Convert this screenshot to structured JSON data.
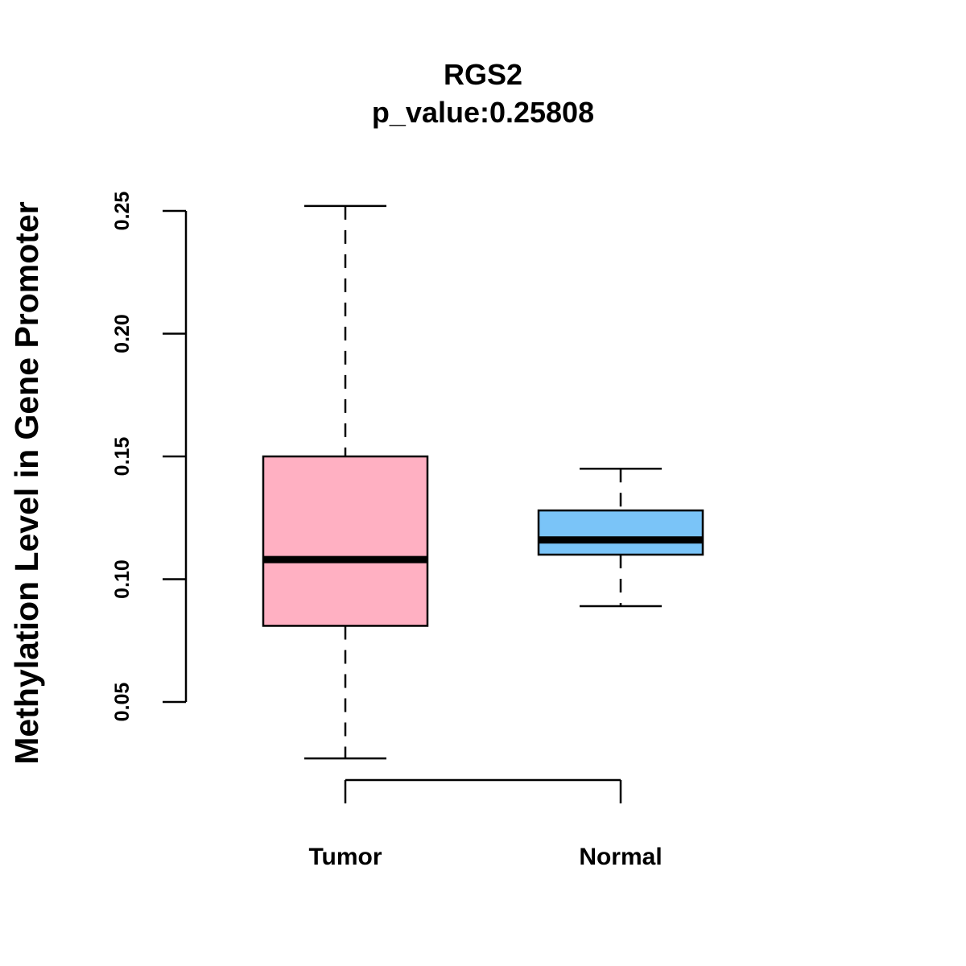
{
  "chart_data": {
    "type": "boxplot",
    "title": "RGS2",
    "subtitle": "p_value:0.25808",
    "xlabel": "",
    "ylabel": "Methylation Level in Gene Promoter",
    "categories": [
      "Tumor",
      "Normal"
    ],
    "yticks": [
      "0.05",
      "0.10",
      "0.15",
      "0.20",
      "0.25"
    ],
    "ylim": [
      0.02,
      0.26
    ],
    "series": [
      {
        "name": "Tumor",
        "whisker_low": 0.027,
        "q1": 0.081,
        "median": 0.108,
        "q3": 0.15,
        "whisker_high": 0.252,
        "color": "#FFB0C2"
      },
      {
        "name": "Normal",
        "whisker_low": 0.089,
        "q1": 0.11,
        "median": 0.116,
        "q3": 0.128,
        "whisker_high": 0.145,
        "color": "#7AC4F8"
      }
    ],
    "grid": false,
    "legend": "none"
  }
}
